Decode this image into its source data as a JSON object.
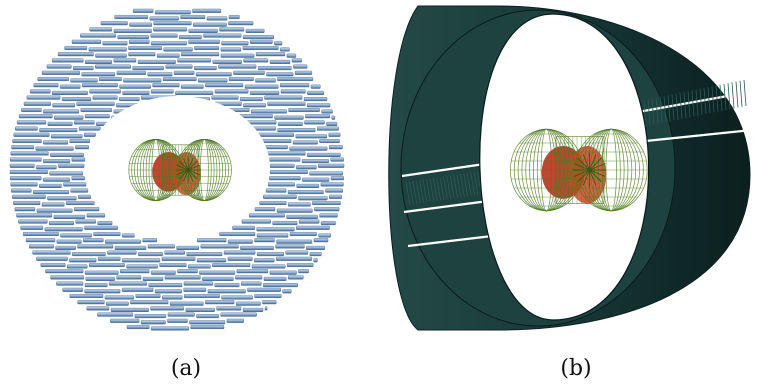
{
  "panels": [
    {
      "caption": "(a)",
      "style": "slat-ring",
      "ring_color": "#8fb0d6",
      "ring_dark": "#3e5f86",
      "core_color_green": "#4e7a1e",
      "core_color_red": "#b8321a"
    },
    {
      "caption": "(b)",
      "style": "solid-barrel",
      "ring_color": "#163836",
      "ring_dark": "#0c2120",
      "core_color_green": "#4e7a1e",
      "core_color_red": "#b8321a"
    }
  ]
}
